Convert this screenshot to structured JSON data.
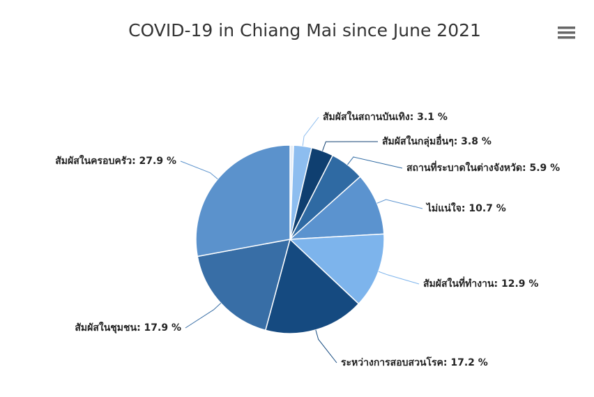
{
  "chart_data": {
    "type": "pie",
    "title": "COVID-19 in Chiang Mai since June 2021",
    "values": [
      0.6,
      3.1,
      3.8,
      5.9,
      10.7,
      12.9,
      17.2,
      17.9,
      27.9
    ],
    "value_labels": [
      null,
      "สัมผัสในสถานบันเทิง: 3.1 %",
      "สัมผัสในกลุ่มอื่นๆ: 3.8 %",
      "สถานที่ระบาดในต่างจังหวัด: 5.9 %",
      "ไม่แน่ใจ: 10.7 %",
      "สัมผัสในที่ทำงาน: 12.9 %",
      "ระหว่างการสอบสวนโรค: 17.2 %",
      "สัมผัสในชุมชน: 17.9 %",
      "สัมผัสในครอบครัว: 27.9 %"
    ],
    "colors": [
      "#e6eef8",
      "#8dbdef",
      "#0f3f70",
      "#2f6aa3",
      "#5b93cf",
      "#7db4ec",
      "#154a80",
      "#386ea6",
      "#5b92cc"
    ]
  }
}
